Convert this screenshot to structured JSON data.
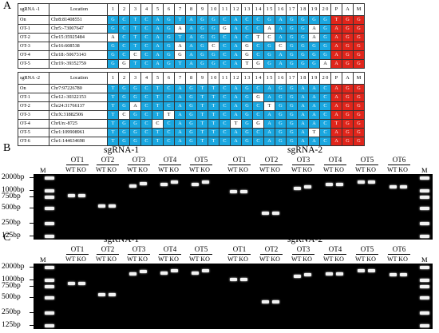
{
  "panels": {
    "a": "A",
    "b": "B",
    "c": "C"
  },
  "table1": {
    "header_name": "sgRNA -1",
    "header_location": "Location",
    "positions": [
      "1",
      "2",
      "3",
      "4",
      "5",
      "6",
      "7",
      "8",
      "9",
      "1 0",
      "1 1",
      "1 2",
      "1 3",
      "1 4",
      "1 5",
      "1 6",
      "1 7",
      "1 8",
      "1 9",
      "2 0",
      "P",
      "A",
      "M"
    ],
    "rows": [
      {
        "name": "On",
        "loc": "Chr8:81408551",
        "bases": [
          "G",
          "C",
          "T",
          "C",
          "A",
          "G",
          "T",
          "A",
          "G",
          "G",
          "C",
          "A",
          "C",
          "C",
          "G",
          "A",
          "G",
          "G",
          "G",
          "G",
          "T",
          "G",
          "G"
        ]
      },
      {
        "name": "OT-1",
        "loc": "Chr5:-73007647",
        "bases": [
          "G",
          "C",
          "T",
          "C",
          "A",
          "G",
          "A",
          "A",
          "G",
          "G",
          "G",
          "A",
          "C",
          "C",
          "A",
          "A",
          "G",
          "G",
          "A",
          "G",
          "A",
          "G",
          "G"
        ]
      },
      {
        "name": "OT-2",
        "loc": "Chr15:35925484",
        "bases": [
          "A",
          "C",
          "T",
          "C",
          "A",
          "G",
          "T",
          "A",
          "G",
          "G",
          "C",
          "A",
          "C",
          "T",
          "C",
          "A",
          "G",
          "G",
          "A",
          "G",
          "A",
          "G",
          "G"
        ]
      },
      {
        "name": "OT-3",
        "loc": "Chr16:608538",
        "bases": [
          "G",
          "C",
          "T",
          "C",
          "A",
          "G",
          "A",
          "A",
          "G",
          "C",
          "C",
          "A",
          "G",
          "C",
          "G",
          "C",
          "G",
          "G",
          "G",
          "G",
          "A",
          "G",
          "G"
        ]
      },
      {
        "name": "OT-4",
        "loc": "Chr18:-50673143",
        "bases": [
          "G",
          "C",
          "C",
          "C",
          "A",
          "G",
          "G",
          "A",
          "G",
          "G",
          "C",
          "A",
          "G",
          "C",
          "G",
          "A",
          "G",
          "G",
          "G",
          "G",
          "A",
          "G",
          "G"
        ]
      },
      {
        "name": "OT-5",
        "loc": "Chr19:-39352759",
        "bases": [
          "G",
          "G",
          "T",
          "C",
          "A",
          "G",
          "T",
          "A",
          "G",
          "G",
          "C",
          "A",
          "T",
          "G",
          "G",
          "A",
          "G",
          "G",
          "G",
          "A",
          "A",
          "G",
          "G"
        ]
      }
    ]
  },
  "table2": {
    "header_name": "sgRNA -2",
    "header_location": "Location",
    "positions": [
      "1",
      "2",
      "3",
      "4",
      "5",
      "6",
      "7",
      "8",
      "9",
      "1 0",
      "1 1",
      "1 2",
      "1 3",
      "1 4",
      "1 5",
      "1 6",
      "1 7",
      "1 8",
      "1 9",
      "2 0",
      "P",
      "A",
      "M"
    ],
    "rows": [
      {
        "name": "On",
        "loc": "Chr7:97226780",
        "bases": [
          "T",
          "G",
          "G",
          "C",
          "T",
          "C",
          "A",
          "G",
          "T",
          "T",
          "C",
          "A",
          "G",
          "C",
          "A",
          "G",
          "G",
          "A",
          "A",
          "C",
          "A",
          "G",
          "G"
        ]
      },
      {
        "name": "OT-1",
        "loc": "Chr12:-30322153",
        "bases": [
          "T",
          "G",
          "G",
          "C",
          "T",
          "C",
          "A",
          "G",
          "T",
          "T",
          "C",
          "A",
          "G",
          "G",
          "A",
          "G",
          "G",
          "A",
          "A",
          "C",
          "A",
          "G",
          "G"
        ]
      },
      {
        "name": "OT-2",
        "loc": "Chr24:31766137",
        "bases": [
          "T",
          "G",
          "A",
          "C",
          "T",
          "C",
          "A",
          "G",
          "T",
          "T",
          "C",
          "A",
          "G",
          "C",
          "T",
          "G",
          "G",
          "A",
          "A",
          "C",
          "A",
          "G",
          "G"
        ]
      },
      {
        "name": "OT-3",
        "loc": "ChrX:31882506",
        "bases": [
          "T",
          "C",
          "G",
          "C",
          "T",
          "T",
          "A",
          "G",
          "T",
          "T",
          "C",
          "A",
          "G",
          "C",
          "A",
          "G",
          "G",
          "A",
          "A",
          "C",
          "A",
          "G",
          "G"
        ]
      },
      {
        "name": "OT-4",
        "loc": "ChrUn:-8725",
        "bases": [
          "T",
          "G",
          "G",
          "C",
          "C",
          "C",
          "A",
          "G",
          "T",
          "T",
          "C",
          "T",
          "G",
          "G",
          "A",
          "G",
          "G",
          "A",
          "A",
          "C",
          "T",
          "G",
          "G"
        ]
      },
      {
        "name": "OT-5",
        "loc": "Chr1:109908961",
        "bases": [
          "T",
          "G",
          "G",
          "C",
          "T",
          "C",
          "A",
          "G",
          "T",
          "T",
          "C",
          "A",
          "G",
          "C",
          "A",
          "G",
          "G",
          "A",
          "T",
          "C",
          "A",
          "G",
          "G"
        ]
      },
      {
        "name": "OT-6",
        "loc": "Chr1:144634698",
        "bases": [
          "T",
          "G",
          "G",
          "C",
          "T",
          "C",
          "A",
          "G",
          "T",
          "T",
          "C",
          "A",
          "G",
          "C",
          "A",
          "G",
          "G",
          "A",
          "A",
          "C",
          "A",
          "G",
          "G"
        ]
      }
    ]
  },
  "gels": {
    "group1_title": "sgRNA-1",
    "group2_title": "sgRNA-2",
    "group1_lanes": [
      "OT1",
      "OT2",
      "OT3",
      "OT4",
      "OT5"
    ],
    "group2_lanes": [
      "OT1",
      "OT2",
      "OT3",
      "OT4",
      "OT5",
      "OT6"
    ],
    "wtko": "WT KO",
    "marker": "M",
    "ladder": [
      "2000bp",
      "1000bp",
      "750bp",
      "500bp",
      "250bp",
      "125bp"
    ]
  }
}
